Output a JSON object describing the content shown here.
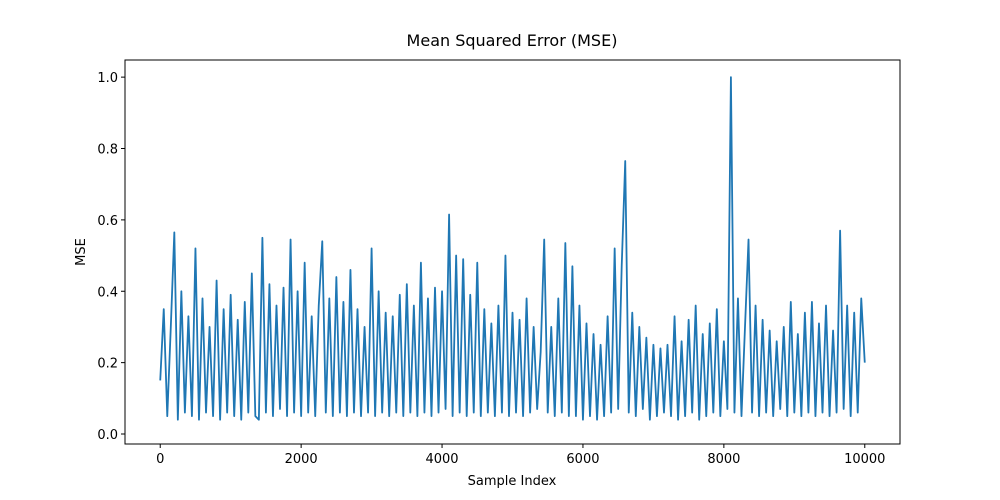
{
  "chart_data": {
    "type": "line",
    "title": "Mean Squared Error (MSE)",
    "xlabel": "Sample Index",
    "ylabel": "MSE",
    "xlim": [
      -500,
      10500
    ],
    "ylim": [
      -0.028,
      1.048
    ],
    "xticks": [
      0,
      2000,
      4000,
      6000,
      8000,
      10000
    ],
    "yticks": [
      {
        "value": 0,
        "label": "0.0"
      },
      0.2,
      0.4,
      0.6,
      0.8,
      {
        "value": 1,
        "label": "1.0"
      }
    ],
    "x": [
      0,
      50,
      100,
      150,
      200,
      250,
      300,
      350,
      400,
      450,
      500,
      550,
      600,
      650,
      700,
      750,
      800,
      850,
      900,
      950,
      1000,
      1050,
      1100,
      1150,
      1200,
      1250,
      1300,
      1350,
      1400,
      1450,
      1500,
      1550,
      1600,
      1650,
      1700,
      1750,
      1800,
      1850,
      1900,
      1950,
      2000,
      2050,
      2100,
      2150,
      2200,
      2250,
      2300,
      2350,
      2400,
      2450,
      2500,
      2550,
      2600,
      2650,
      2700,
      2750,
      2800,
      2850,
      2900,
      2950,
      3000,
      3050,
      3100,
      3150,
      3200,
      3250,
      3300,
      3350,
      3400,
      3450,
      3500,
      3550,
      3600,
      3650,
      3700,
      3750,
      3800,
      3850,
      3900,
      3950,
      4000,
      4050,
      4100,
      4150,
      4200,
      4250,
      4300,
      4350,
      4400,
      4450,
      4500,
      4550,
      4600,
      4650,
      4700,
      4750,
      4800,
      4850,
      4900,
      4950,
      5000,
      5050,
      5100,
      5150,
      5200,
      5250,
      5300,
      5350,
      5400,
      5450,
      5500,
      5550,
      5600,
      5650,
      5700,
      5750,
      5800,
      5850,
      5900,
      5950,
      6000,
      6050,
      6100,
      6150,
      6200,
      6250,
      6300,
      6350,
      6400,
      6450,
      6500,
      6550,
      6600,
      6650,
      6700,
      6750,
      6800,
      6850,
      6900,
      6950,
      7000,
      7050,
      7100,
      7150,
      7200,
      7250,
      7300,
      7350,
      7400,
      7450,
      7500,
      7550,
      7600,
      7650,
      7700,
      7750,
      7800,
      7850,
      7900,
      7950,
      8000,
      8050,
      8100,
      8150,
      8200,
      8250,
      8300,
      8350,
      8400,
      8450,
      8500,
      8550,
      8600,
      8650,
      8700,
      8750,
      8800,
      8850,
      8900,
      8950,
      9000,
      9050,
      9100,
      9150,
      9200,
      9250,
      9300,
      9350,
      9400,
      9450,
      9500,
      9550,
      9600,
      9650,
      9700,
      9750,
      9800,
      9850,
      9900,
      9950,
      10000
    ],
    "series": [
      {
        "name": "MSE",
        "color": "#1f77b4",
        "values": [
          0.15,
          0.35,
          0.05,
          0.3,
          0.565,
          0.04,
          0.4,
          0.06,
          0.33,
          0.05,
          0.52,
          0.04,
          0.38,
          0.06,
          0.3,
          0.05,
          0.43,
          0.04,
          0.35,
          0.06,
          0.39,
          0.05,
          0.32,
          0.04,
          0.37,
          0.06,
          0.45,
          0.05,
          0.04,
          0.55,
          0.06,
          0.42,
          0.05,
          0.36,
          0.07,
          0.41,
          0.05,
          0.545,
          0.06,
          0.4,
          0.05,
          0.48,
          0.06,
          0.33,
          0.05,
          0.36,
          0.54,
          0.06,
          0.38,
          0.05,
          0.44,
          0.06,
          0.37,
          0.05,
          0.46,
          0.06,
          0.35,
          0.05,
          0.3,
          0.06,
          0.52,
          0.05,
          0.4,
          0.06,
          0.34,
          0.05,
          0.33,
          0.06,
          0.39,
          0.05,
          0.42,
          0.06,
          0.36,
          0.05,
          0.48,
          0.06,
          0.38,
          0.05,
          0.41,
          0.06,
          0.4,
          0.07,
          0.615,
          0.05,
          0.5,
          0.06,
          0.49,
          0.05,
          0.39,
          0.06,
          0.48,
          0.05,
          0.35,
          0.06,
          0.31,
          0.05,
          0.36,
          0.06,
          0.5,
          0.05,
          0.34,
          0.06,
          0.32,
          0.05,
          0.38,
          0.06,
          0.3,
          0.07,
          0.23,
          0.545,
          0.06,
          0.3,
          0.05,
          0.38,
          0.06,
          0.535,
          0.05,
          0.47,
          0.05,
          0.36,
          0.04,
          0.31,
          0.05,
          0.28,
          0.04,
          0.25,
          0.05,
          0.33,
          0.06,
          0.52,
          0.07,
          0.47,
          0.765,
          0.06,
          0.34,
          0.05,
          0.3,
          0.07,
          0.27,
          0.04,
          0.25,
          0.05,
          0.24,
          0.06,
          0.25,
          0.05,
          0.33,
          0.04,
          0.26,
          0.05,
          0.32,
          0.06,
          0.36,
          0.04,
          0.28,
          0.05,
          0.31,
          0.06,
          0.35,
          0.05,
          0.26,
          0.07,
          1.0,
          0.06,
          0.38,
          0.05,
          0.3,
          0.545,
          0.06,
          0.36,
          0.05,
          0.32,
          0.06,
          0.29,
          0.05,
          0.26,
          0.07,
          0.3,
          0.05,
          0.37,
          0.06,
          0.28,
          0.05,
          0.34,
          0.06,
          0.37,
          0.05,
          0.31,
          0.06,
          0.36,
          0.05,
          0.29,
          0.06,
          0.57,
          0.07,
          0.36,
          0.05,
          0.34,
          0.06,
          0.38,
          0.2
        ]
      }
    ]
  }
}
